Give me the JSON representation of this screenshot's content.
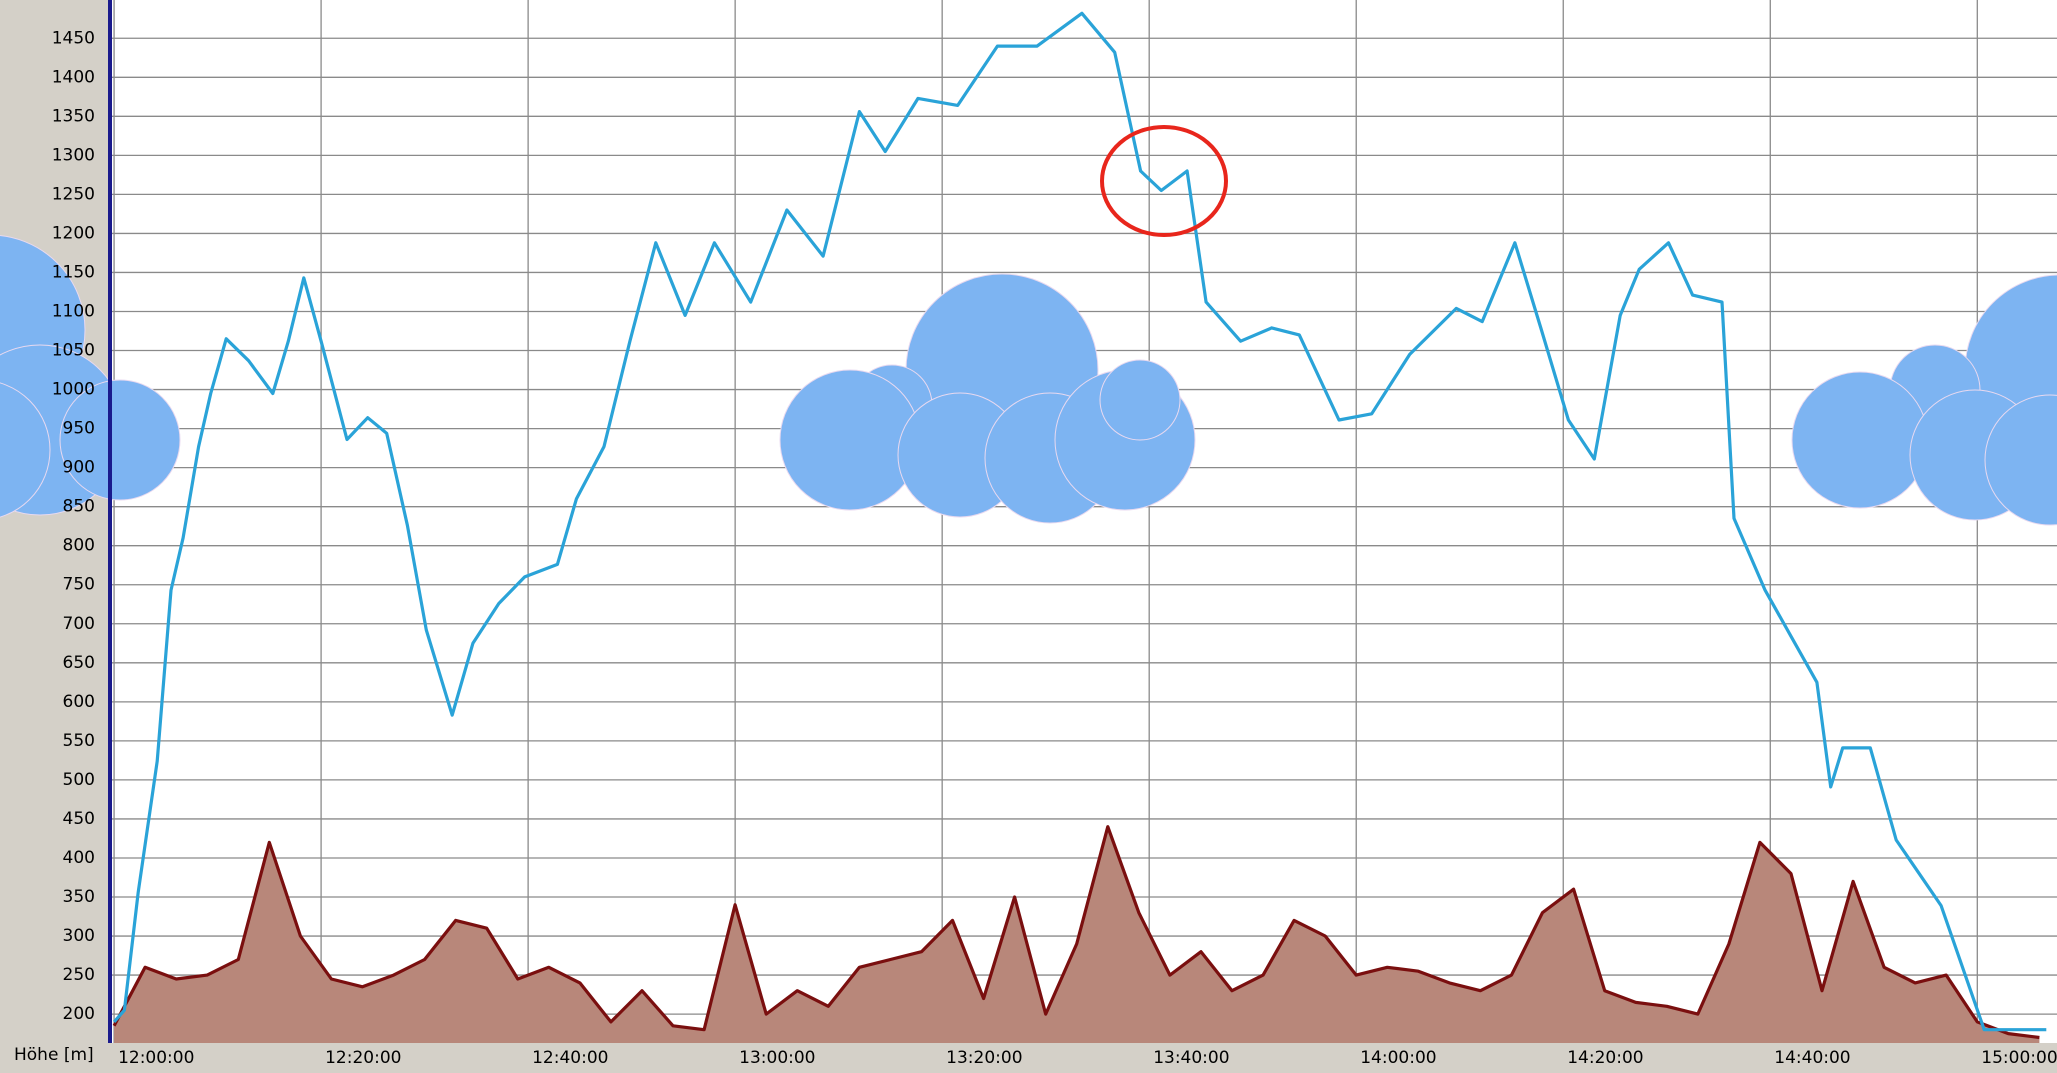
{
  "chart_data": {
    "type": "line",
    "y_label": "Höhe [m]",
    "ylim": [
      163,
      1499
    ],
    "yticks": [
      200,
      250,
      300,
      350,
      400,
      450,
      500,
      550,
      600,
      650,
      700,
      750,
      800,
      850,
      900,
      950,
      1000,
      1050,
      1100,
      1150,
      1200,
      1250,
      1300,
      1350,
      1400,
      1450
    ],
    "xlim": [
      "11:59:48",
      "15:07:42"
    ],
    "xticks": [
      "12:00:00",
      "12:20:00",
      "12:40:00",
      "13:00:00",
      "13:20:00",
      "13:40:00",
      "14:00:00",
      "14:20:00",
      "14:40:00",
      "15:00:00"
    ],
    "grid": true,
    "series": [
      {
        "color": "#2aa3d8",
        "x": [
          "12:00:00",
          "12:01:00",
          "12:02:20",
          "12:04:10",
          "12:05:30",
          "12:06:40",
          "12:08:10",
          "12:09:20",
          "12:10:50",
          "12:13:00",
          "12:15:20",
          "12:16:50",
          "12:18:20",
          "12:20:00",
          "12:22:30",
          "12:24:30",
          "12:26:20",
          "12:28:20",
          "12:30:10",
          "12:32:40",
          "12:34:40",
          "12:37:10",
          "12:39:40",
          "12:42:50",
          "12:44:40",
          "12:47:20",
          "12:49:50",
          "12:52:20",
          "12:55:10",
          "12:58:00",
          "13:01:30",
          "13:05:00",
          "13:08:30",
          "13:12:00",
          "13:14:30",
          "13:17:40",
          "13:21:30",
          "13:25:20",
          "13:29:10",
          "13:33:30",
          "13:36:40",
          "13:39:10",
          "13:41:10",
          "13:43:40",
          "13:45:30",
          "13:48:50",
          "13:51:50",
          "13:54:30",
          "13:58:20",
          "14:01:30",
          "14:05:10",
          "14:09:40",
          "14:12:10",
          "14:15:20",
          "14:17:50",
          "14:20:30",
          "14:23:00",
          "14:25:30",
          "14:27:20",
          "14:30:10",
          "14:32:30",
          "14:35:20",
          "14:36:30",
          "14:39:30",
          "14:42:00",
          "14:44:30",
          "14:45:50",
          "14:47:00",
          "14:49:40",
          "14:52:10",
          "14:56:30",
          "15:00:40",
          "15:06:40"
        ],
        "values": [
          190,
          205,
          356,
          524,
          743,
          810,
          927,
          995,
          1065,
          1037,
          995,
          1062,
          1143,
          1062,
          936,
          964,
          944,
          826,
          692,
          583,
          675,
          726,
          760,
          776,
          860,
          927,
          1062,
          1188,
          1095,
          1188,
          1112,
          1230,
          1171,
          1356,
          1305,
          1373,
          1364,
          1440,
          1440,
          1482,
          1432,
          1280,
          1255,
          1280,
          1112,
          1062,
          1079,
          1070,
          961,
          969,
          1045,
          1104,
          1087,
          1188,
          1079,
          961,
          911,
          1095,
          1154,
          1188,
          1121,
          1112,
          835,
          743,
          684,
          625,
          491,
          541,
          541,
          423,
          339,
          180,
          180
        ]
      },
      {
        "color": "#7a0f0f",
        "fill": "#b8877a",
        "x": [
          "12:00:00",
          "12:03:00",
          "12:06:00",
          "12:09:00",
          "12:12:00",
          "12:15:00",
          "12:18:00",
          "12:21:00",
          "12:24:00",
          "12:27:00",
          "12:30:00",
          "12:33:00",
          "12:36:00",
          "12:39:00",
          "12:42:00",
          "12:45:00",
          "12:48:00",
          "12:51:00",
          "12:54:00",
          "12:57:00",
          "13:00:00",
          "13:03:00",
          "13:06:00",
          "13:09:00",
          "13:12:00",
          "13:15:00",
          "13:18:00",
          "13:21:00",
          "13:24:00",
          "13:27:00",
          "13:30:00",
          "13:33:00",
          "13:36:00",
          "13:39:00",
          "13:42:00",
          "13:45:00",
          "13:48:00",
          "13:51:00",
          "13:54:00",
          "13:57:00",
          "14:00:00",
          "14:03:00",
          "14:06:00",
          "14:09:00",
          "14:12:00",
          "14:15:00",
          "14:18:00",
          "14:21:00",
          "14:24:00",
          "14:27:00",
          "14:30:00",
          "14:33:00",
          "14:36:00",
          "14:39:00",
          "14:42:00",
          "14:45:00",
          "14:48:00",
          "14:51:00",
          "14:54:00",
          "14:57:00",
          "15:00:00",
          "15:03:00",
          "15:06:00"
        ],
        "values": [
          185,
          260,
          245,
          250,
          270,
          420,
          300,
          245,
          235,
          250,
          270,
          320,
          310,
          245,
          260,
          240,
          190,
          230,
          185,
          180,
          340,
          200,
          230,
          210,
          260,
          270,
          280,
          320,
          220,
          350,
          200,
          290,
          440,
          330,
          250,
          280,
          230,
          250,
          320,
          300,
          250,
          260,
          255,
          240,
          230,
          250,
          330,
          360,
          230,
          215,
          210,
          200,
          290,
          420,
          380,
          230,
          370,
          260,
          240,
          250,
          190,
          175,
          170
        ]
      }
    ]
  }
}
